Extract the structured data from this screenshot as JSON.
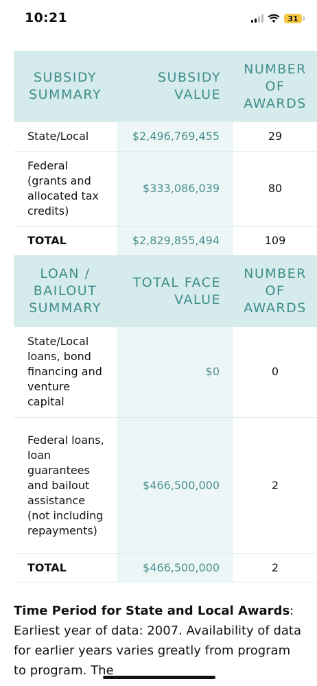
{
  "status_bar": {
    "time": "10:21",
    "battery": "31",
    "icons": [
      "cellular-signal-icon",
      "wifi-icon",
      "battery-icon"
    ]
  },
  "subsidy_table": {
    "headers": [
      "SUBSIDY SUMMARY",
      "SUBSIDY VALUE",
      "NUMBER OF AWARDS"
    ],
    "rows": [
      {
        "label": "State/Local",
        "value": "$2,496,769,455",
        "count": "29"
      },
      {
        "label": "Federal (grants and allocated tax credits)",
        "value": "$333,086,039",
        "count": "80"
      },
      {
        "label": "TOTAL",
        "value": "$2,829,855,494",
        "count": "109"
      }
    ]
  },
  "loan_table": {
    "headers": [
      "LOAN / BAILOUT SUMMARY",
      "TOTAL FACE VALUE",
      "NUMBER OF AWARDS"
    ],
    "rows": [
      {
        "label": "State/Local loans, bond financing and venture capital",
        "value": "$0",
        "count": "0"
      },
      {
        "label": "Federal loans, loan guarantees and bailout assistance (not including repayments)",
        "value": "$466,500,000",
        "count": "2"
      },
      {
        "label": "TOTAL",
        "value": "$466,500,000",
        "count": "2"
      }
    ]
  },
  "footer": {
    "heading": "Time Period for State and Local Awards",
    "text": ": Earliest year of data: 2007. Availability of data for earlier years varies greatly from program to program. The"
  },
  "colors": {
    "header_bg": "#d6ecec",
    "header_text": "#3f8c8c",
    "value_bg": "#edf6f6",
    "value_text": "#4b8f8f",
    "battery": "#f7c945"
  }
}
